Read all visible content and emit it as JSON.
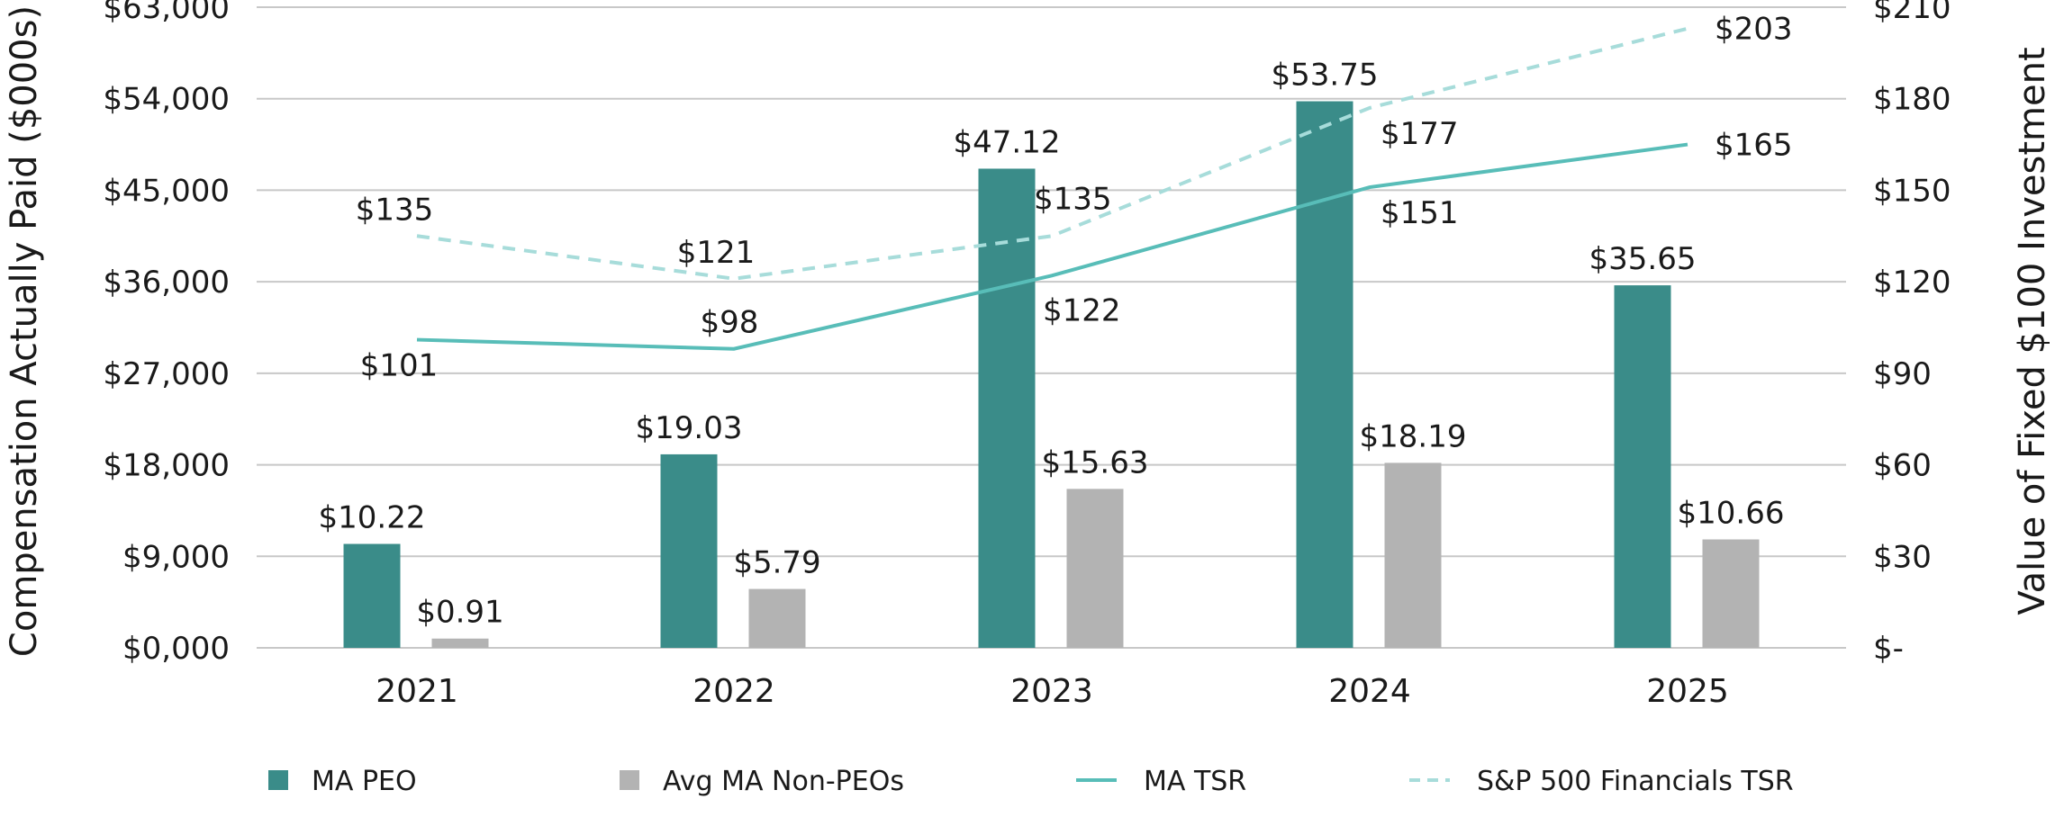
{
  "chart_data": {
    "type": "bar",
    "categories": [
      "2021",
      "2022",
      "2023",
      "2024",
      "2025"
    ],
    "y_left": {
      "label": "Compensation Actually Paid ($000s)",
      "range": [
        0,
        63000
      ],
      "ticks": [
        "$0,000",
        "$9,000",
        "$18,000",
        "$27,000",
        "$36,000",
        "$45,000",
        "$54,000",
        "$63,000"
      ]
    },
    "y_right": {
      "label": "Value of Fixed $100 Investment",
      "range": [
        0,
        210
      ],
      "ticks": [
        "$-",
        "$30",
        "$60",
        "$90",
        "$120",
        "$150",
        "$180",
        "$210"
      ]
    },
    "grid": true,
    "legend_position": "bottom",
    "bar_series": [
      {
        "name": "MA PEO",
        "color": "#3a8c89",
        "values": [
          10220,
          19030,
          47120,
          53750,
          35650
        ],
        "labels": [
          "$10.22",
          "$19.03",
          "$47.12",
          "$53.75",
          "$35.65"
        ]
      },
      {
        "name": "Avg MA Non-PEOs",
        "color": "#b3b3b3",
        "values": [
          910,
          5790,
          15630,
          18190,
          10660
        ],
        "labels": [
          "$0.91",
          "$5.79",
          "$15.63",
          "$18.19",
          "$10.66"
        ]
      }
    ],
    "line_series": [
      {
        "name": "MA TSR",
        "color": "#58bdb8",
        "dash": false,
        "values": [
          101,
          98,
          122,
          151,
          165
        ],
        "labels": [
          "$101",
          "$98",
          "$122",
          "$151",
          "$165"
        ]
      },
      {
        "name": "S&P 500 Financials TSR",
        "color": "#a7dcda",
        "dash": true,
        "values": [
          135,
          121,
          135,
          177,
          203
        ],
        "labels": [
          "$135",
          "$121",
          "$135",
          "$177",
          "$203"
        ]
      }
    ]
  }
}
